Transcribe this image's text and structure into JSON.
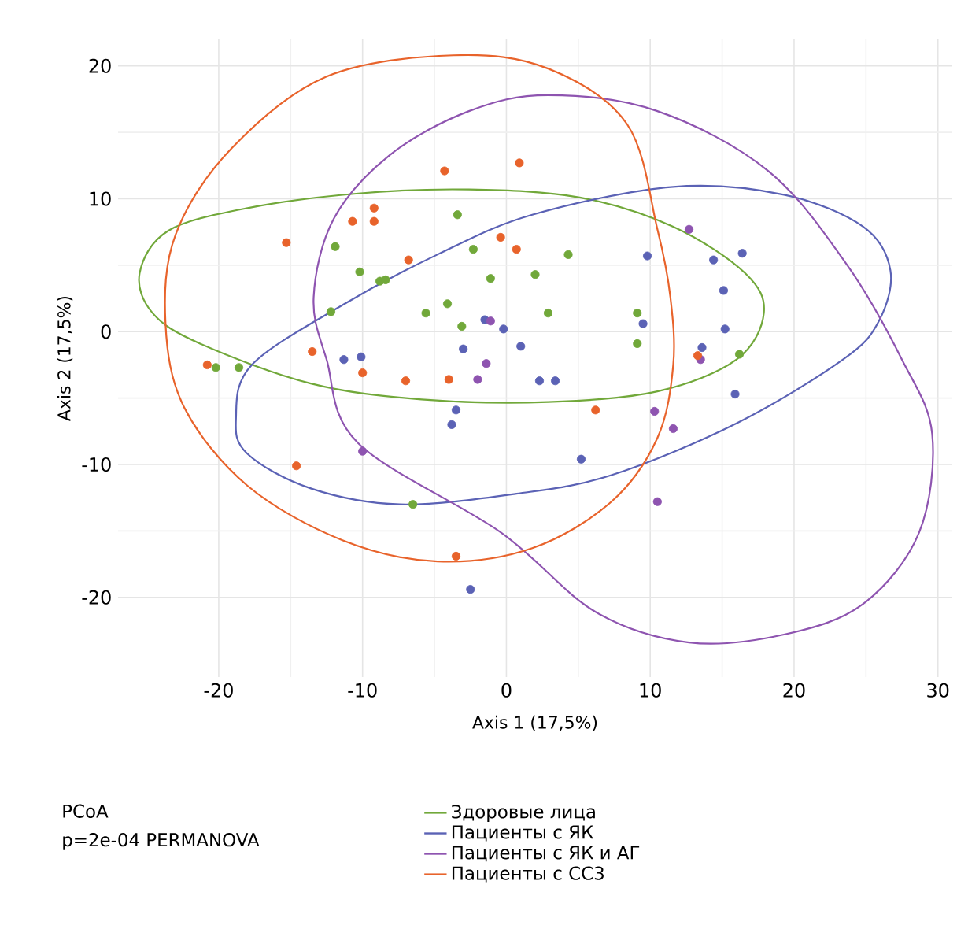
{
  "chart_data": {
    "type": "scatter",
    "xlabel": "Axis 1 (17,5%)",
    "ylabel": "Axis 2 (17,5%)",
    "xlim": [
      -27,
      31
    ],
    "ylim": [
      -26,
      22
    ],
    "xticks": [
      -20,
      -10,
      0,
      10,
      20,
      30
    ],
    "yticks": [
      -20,
      -10,
      0,
      10,
      20
    ],
    "grid": true,
    "legend": "bottom",
    "annotations": [
      "PCoA",
      "p=2e-04 PERMANOVA"
    ],
    "series": [
      {
        "name": "Здоровые лица",
        "color": "#71a83a",
        "x": [
          -20.2,
          -18.6,
          -12.2,
          -11.9,
          -10.2,
          -8.8,
          -8.4,
          -5.6,
          -4.1,
          -3.4,
          -3.1,
          -2.3,
          -1.1,
          2.0,
          2.9,
          4.3,
          9.1,
          9.1,
          16.2,
          -6.5
        ],
        "values": [
          -2.7,
          -2.7,
          1.5,
          6.4,
          4.5,
          3.8,
          3.9,
          1.4,
          2.1,
          8.8,
          0.4,
          6.2,
          4.0,
          4.3,
          1.4,
          5.8,
          1.4,
          -0.9,
          -1.7,
          -13.0
        ]
      },
      {
        "name": "Пациенты с ЯК",
        "color": "#5b62b5",
        "x": [
          -11.3,
          -10.1,
          -3.0,
          -3.8,
          -3.5,
          -2.5,
          -1.5,
          -0.2,
          1.0,
          2.3,
          3.4,
          5.2,
          9.8,
          9.5,
          15.1,
          14.4,
          16.4,
          15.2,
          13.6,
          15.9
        ],
        "values": [
          -2.1,
          -1.9,
          -1.3,
          -7.0,
          -5.9,
          -19.4,
          0.9,
          0.2,
          -1.1,
          -3.7,
          -3.7,
          -9.6,
          5.7,
          0.6,
          3.1,
          5.4,
          5.9,
          0.2,
          -1.2,
          -4.7
        ]
      },
      {
        "name": "Пациенты с ЯК и АГ",
        "color": "#8e54b0",
        "x": [
          -10.0,
          -1.1,
          -1.4,
          -2.0,
          10.3,
          11.6,
          10.5,
          12.7,
          13.5
        ],
        "values": [
          -9.0,
          0.8,
          -2.4,
          -3.6,
          -6.0,
          -7.3,
          -12.8,
          7.7,
          -2.1
        ]
      },
      {
        "name": "Пациенты с СС3",
        "color": "#e8632b",
        "x": [
          -20.8,
          -15.3,
          -10.7,
          -9.2,
          -9.2,
          -6.8,
          -4.3,
          -0.4,
          0.7,
          0.9,
          -7.0,
          -10.0,
          -14.6,
          -13.5,
          -4.0,
          -3.5,
          6.2,
          13.3
        ],
        "values": [
          -2.5,
          6.7,
          8.3,
          8.3,
          9.3,
          5.4,
          12.1,
          7.1,
          6.2,
          12.7,
          -3.7,
          -3.1,
          -10.1,
          -1.5,
          -3.6,
          -16.9,
          -5.9,
          -1.8
        ]
      }
    ]
  }
}
